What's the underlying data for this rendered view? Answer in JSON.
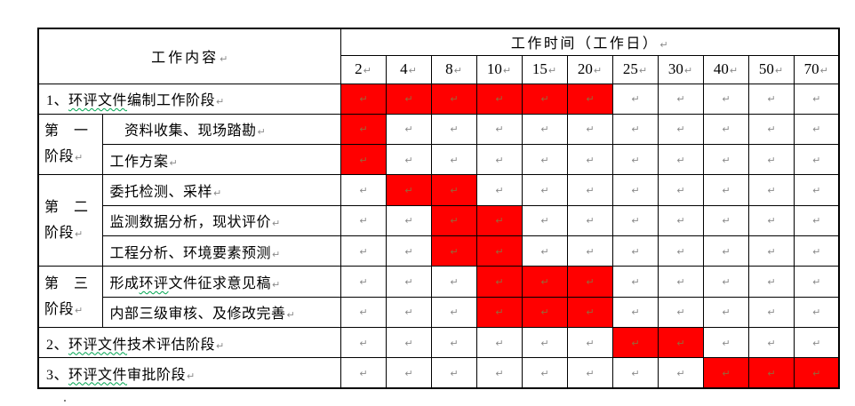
{
  "table": {
    "pilcrow": "↵",
    "colors": {
      "bar_fill": "#ff0000",
      "border": "#000000",
      "mark_gray": "#8a8a8a",
      "mark_on_bar": "#96683a",
      "spellcheck_underline": "#00a550"
    },
    "header": {
      "content_label": "工作内容",
      "time_label": "工作时间（工作日）",
      "columns": [
        "2",
        "4",
        "8",
        "10",
        "15",
        "20",
        "25",
        "30",
        "40",
        "50",
        "70"
      ]
    },
    "rows": [
      {
        "kind": "full",
        "label": "1、环评文件编制工作阶段",
        "wavy": "环评文件",
        "bars": [
          "2",
          "4",
          "8",
          "10",
          "15",
          "20"
        ]
      },
      {
        "kind": "sub",
        "stage": {
          "line1": "第　一",
          "line2": "阶段",
          "span": 2
        },
        "label": "　资料收集、现场踏勘",
        "bars": [
          "2"
        ]
      },
      {
        "kind": "sub",
        "label": "工作方案",
        "bars": [
          "2"
        ]
      },
      {
        "kind": "sub",
        "stage": {
          "line1": "第　二",
          "line2": "阶段",
          "span": 3
        },
        "label": "委托检测、采样",
        "bars": [
          "4",
          "8"
        ]
      },
      {
        "kind": "sub",
        "label": "监测数据分析，现状评价",
        "bars": [
          "8",
          "10"
        ]
      },
      {
        "kind": "sub",
        "label": "工程分析、环境要素预测",
        "bars": [
          "8",
          "10"
        ]
      },
      {
        "kind": "sub",
        "stage": {
          "line1": "第　三",
          "line2": "阶段",
          "span": 2
        },
        "label": "形成环评文件征求意见稿",
        "wavy": "环评",
        "bars": [
          "10",
          "15",
          "20"
        ]
      },
      {
        "kind": "sub",
        "label": "内部三级审核、及修改完善",
        "bars": [
          "10",
          "15",
          "20"
        ]
      },
      {
        "kind": "full",
        "label": "2、环评文件技术评估阶段",
        "wavy": "环评文件",
        "bars": [
          "25",
          "30"
        ]
      },
      {
        "kind": "full",
        "label": "3、环评文件审批阶段",
        "wavy": "环评文件",
        "bars": [
          "40",
          "50",
          "70"
        ]
      }
    ]
  }
}
